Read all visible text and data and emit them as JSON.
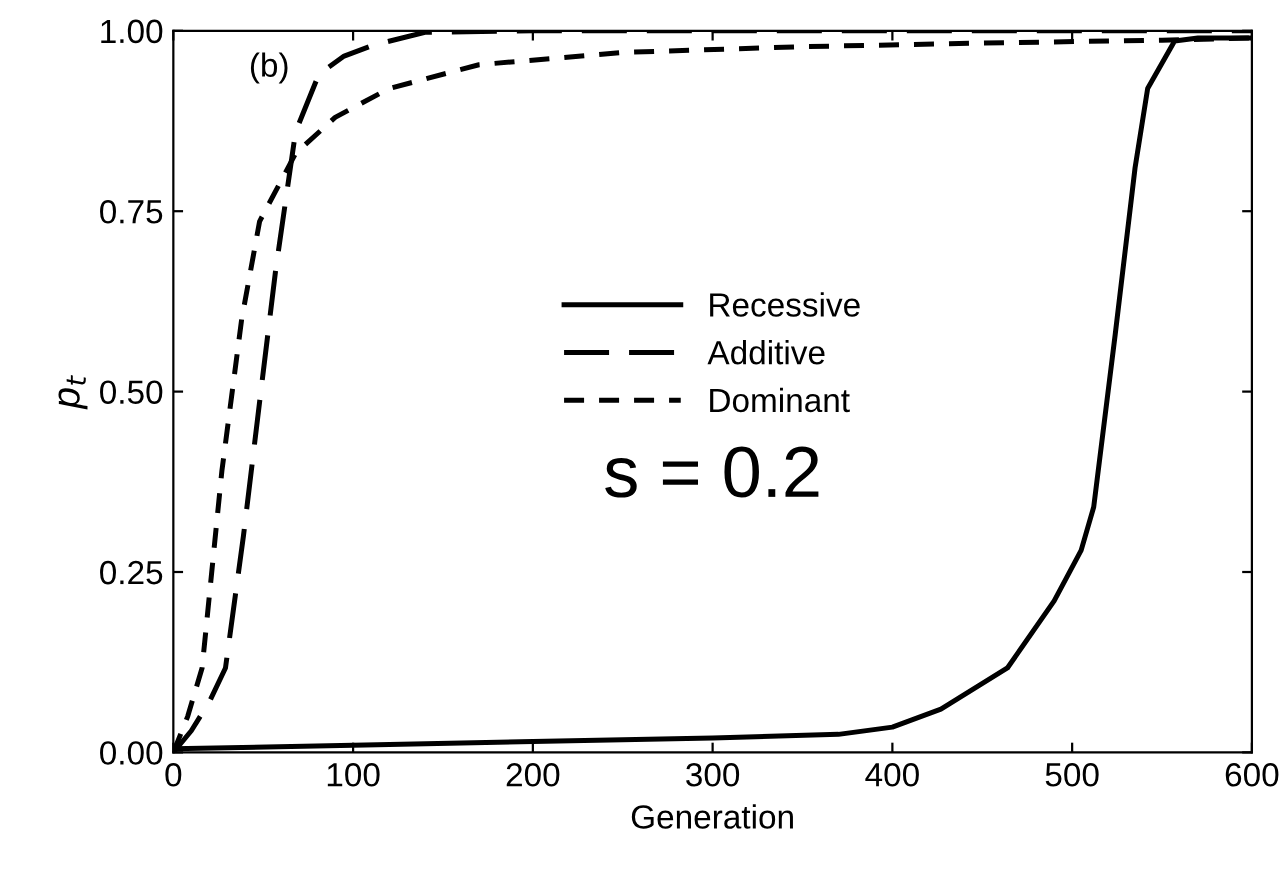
{
  "chart_data": {
    "type": "line",
    "xlabel": "Generation",
    "ylabel": "p$_{t}$",
    "annotations": [
      "(b)",
      "s = 0.2"
    ],
    "xlim": [
      0,
      600
    ],
    "ylim": [
      0,
      1
    ],
    "xticks": [
      0,
      100,
      200,
      300,
      400,
      500,
      600
    ],
    "yticks": [
      {
        "value": 0,
        "label": "0.00"
      },
      {
        "value": 0.25,
        "label": "0.25"
      },
      {
        "value": 0.5,
        "label": "0.50"
      },
      {
        "value": 0.75,
        "label": "0.75"
      },
      {
        "value": 1,
        "label": "1.00"
      }
    ],
    "grid": false,
    "legend": "center",
    "marker": "none",
    "series": [
      {
        "name": "Recessive",
        "color": "#000000",
        "line_style": "solid",
        "x": [
          0,
          100,
          200,
          300,
          370,
          400,
          427,
          464,
          490,
          505,
          512,
          524,
          535,
          542,
          557,
          570,
          600
        ],
        "values": [
          0.005,
          0.01,
          0.015,
          0.02,
          0.025,
          0.035,
          0.06,
          0.117,
          0.21,
          0.28,
          0.34,
          0.58,
          0.81,
          0.92,
          0.986,
          0.99,
          0.99
        ]
      },
      {
        "name": "Additive",
        "color": "#000000",
        "line_style": "dashed",
        "x": [
          0,
          10,
          20,
          29,
          39,
          48,
          57,
          68,
          81,
          95,
          111,
          140,
          200,
          300,
          400,
          500,
          600
        ],
        "values": [
          0,
          0.03,
          0.07,
          0.117,
          0.3,
          0.486,
          0.67,
          0.86,
          0.94,
          0.965,
          0.98,
          0.998,
          1.0,
          1.0,
          1.0,
          1.0,
          1.0
        ]
      },
      {
        "name": "Dominant",
        "color": "#000000",
        "line_style": "dotted",
        "x": [
          0,
          8,
          16,
          27,
          38,
          48,
          68,
          90,
          120,
          170,
          250,
          350,
          450,
          550,
          600
        ],
        "values": [
          0,
          0.05,
          0.117,
          0.39,
          0.6,
          0.736,
          0.83,
          0.88,
          0.92,
          0.953,
          0.97,
          0.978,
          0.983,
          0.987,
          0.99
        ]
      }
    ]
  }
}
